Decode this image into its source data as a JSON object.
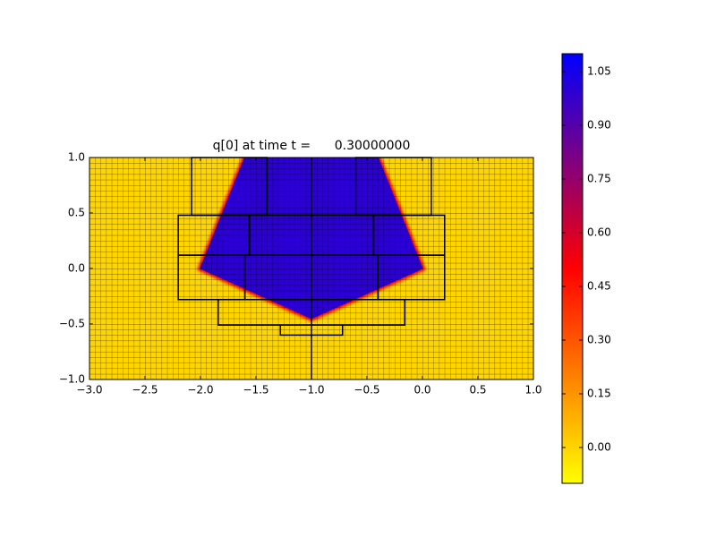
{
  "chart_data": {
    "type": "field",
    "title": "q[0] at time t =      0.30000000",
    "xlim": [
      -3,
      1
    ],
    "ylim": [
      -1,
      1
    ],
    "xticks": [
      {
        "value": -3,
        "label": "−3.0"
      },
      {
        "value": -2.5,
        "label": "−2.5"
      },
      {
        "value": -2,
        "label": "−2.0"
      },
      {
        "value": -1.5,
        "label": "−1.5"
      },
      {
        "value": -1,
        "label": "−1.0"
      },
      {
        "value": -0.5,
        "label": "−0.5"
      },
      {
        "value": 0,
        "label": "0.0"
      },
      {
        "value": 0.5,
        "label": "0.5"
      },
      {
        "value": 1,
        "label": "1.0"
      }
    ],
    "yticks": [
      {
        "value": -1,
        "label": "−1.0"
      },
      {
        "value": -0.5,
        "label": "−0.5"
      },
      {
        "value": 0,
        "label": "0.0"
      },
      {
        "value": 0.5,
        "label": "0.5"
      },
      {
        "value": 1,
        "label": "1.0"
      }
    ],
    "background_value": 0,
    "regions": [
      {
        "value": 1,
        "x": [
          -1.6,
          -0.4,
          0,
          -1,
          -2
        ],
        "y": [
          1,
          1,
          0,
          -0.45,
          0
        ]
      }
    ],
    "patches": [
      {
        "x": [
          -2.08,
          -1.4
        ],
        "y": [
          0.48,
          1
        ]
      },
      {
        "x": [
          -0.6,
          0.08
        ],
        "y": [
          0.48,
          1
        ]
      },
      {
        "x": [
          -2.2,
          -1.56
        ],
        "y": [
          0.12,
          0.48
        ]
      },
      {
        "x": [
          -0.44,
          0.2
        ],
        "y": [
          0.12,
          0.48
        ]
      },
      {
        "x": [
          -2.2,
          -1.6
        ],
        "y": [
          -0.28,
          0.12
        ]
      },
      {
        "x": [
          -0.4,
          0.2
        ],
        "y": [
          -0.28,
          0.12
        ]
      },
      {
        "x": [
          -1.56,
          -0.44
        ],
        "y": [
          0.12,
          0.48
        ]
      },
      {
        "x": [
          -1.6,
          -0.4
        ],
        "y": [
          -0.28,
          0.12
        ]
      },
      {
        "x": [
          -1.84,
          -0.16
        ],
        "y": [
          -0.51,
          -0.28
        ]
      },
      {
        "x": [
          -1.28,
          -0.72
        ],
        "y": [
          -0.6,
          -0.51
        ]
      },
      {
        "x": [
          -1,
          -1
        ],
        "y": [
          -1,
          1
        ]
      }
    ],
    "colormap": [
      "#ffff00",
      "#ff0000",
      "#0000ff"
    ],
    "clim": [
      -0.1,
      1.1
    ],
    "cticks": [
      {
        "value": 0,
        "label": "0.00"
      },
      {
        "value": 0.15,
        "label": "0.15"
      },
      {
        "value": 0.3,
        "label": "0.30"
      },
      {
        "value": 0.45,
        "label": "0.45"
      },
      {
        "value": 0.6,
        "label": "0.60"
      },
      {
        "value": 0.75,
        "label": "0.75"
      },
      {
        "value": 0.9,
        "label": "0.90"
      },
      {
        "value": 1.05,
        "label": "1.05"
      }
    ],
    "mesh_spacing": 0.05
  }
}
